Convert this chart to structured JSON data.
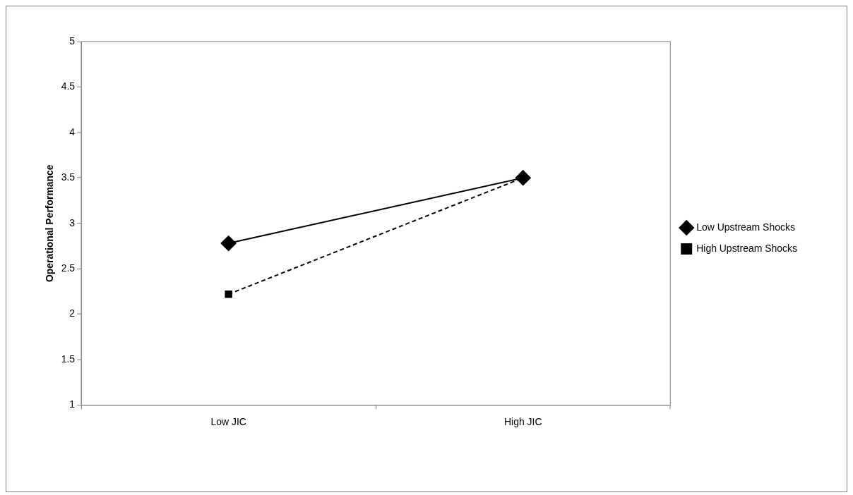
{
  "chart_data": {
    "type": "line",
    "ylabel": "Operational Performance",
    "categories": [
      "Low JIC",
      "High JIC"
    ],
    "series": [
      {
        "name": "Low Upstream Shocks",
        "color": "#000000",
        "values": [
          2.78,
          3.5
        ],
        "marker": "diamond",
        "line_style": "solid"
      },
      {
        "name": "High Upstream Shocks",
        "color": "#000000",
        "values": [
          2.22,
          3.5
        ],
        "marker": "square",
        "line_style": "dashed"
      }
    ],
    "ylim": [
      1,
      5
    ],
    "yticks": [
      1,
      1.5,
      2,
      2.5,
      3,
      3.5,
      4,
      4.5,
      5
    ],
    "grid": false,
    "legend": "right"
  }
}
